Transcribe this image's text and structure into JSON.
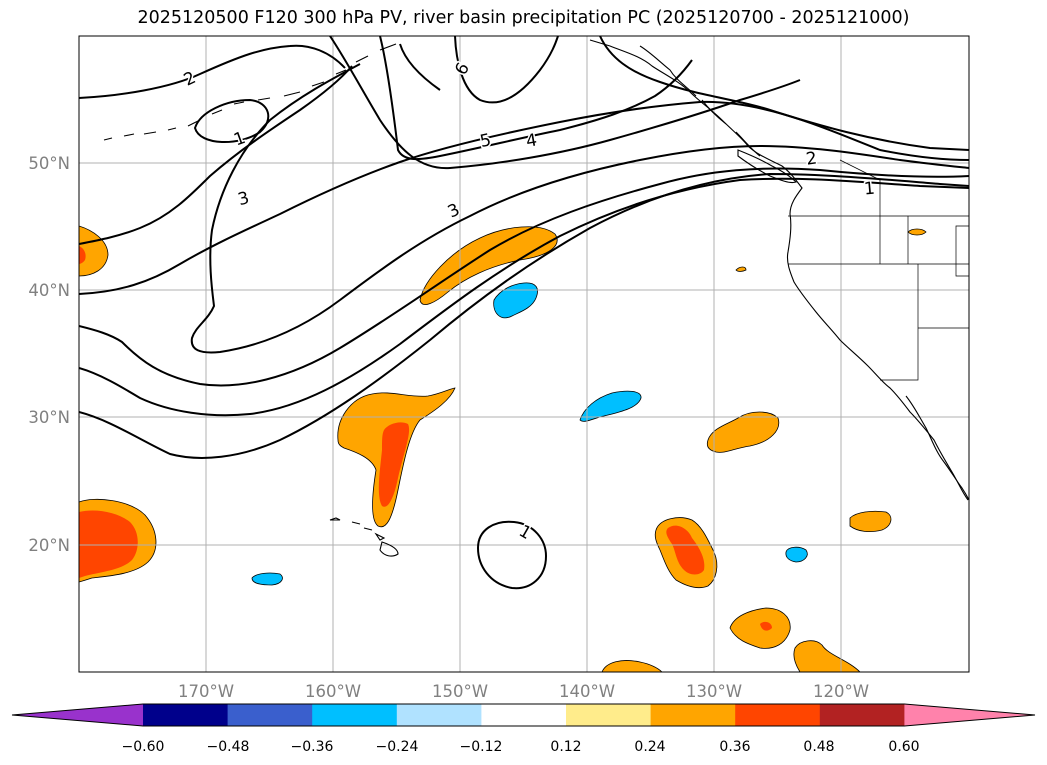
{
  "title": "2025120500 F120 300 hPa PV, river basin precipitation PC (2025120700 - 2025121000)",
  "map": {
    "lon_ticks": [
      "170°W",
      "160°W",
      "150°W",
      "140°W",
      "130°W",
      "120°W"
    ],
    "lat_ticks": [
      "50°N",
      "40°N",
      "30°N",
      "20°N"
    ],
    "contour_labels": [
      "2",
      "1",
      "3",
      "6",
      "5",
      "4",
      "3",
      "2",
      "1",
      "1"
    ]
  },
  "colorbar": {
    "ticks": [
      "−0.60",
      "−0.48",
      "−0.36",
      "−0.24",
      "−0.12",
      "0.12",
      "0.24",
      "0.36",
      "0.48",
      "0.60"
    ],
    "colors": [
      "#9932cc",
      "#00008b",
      "#3a5fcd",
      "#00bfff",
      "#b0e2ff",
      "#ffffff",
      "#ffec8b",
      "#ffa500",
      "#ff4500",
      "#b22222",
      "#ff82ab"
    ]
  },
  "colors": {
    "orange": "#ffa500",
    "red_orange": "#ff4500",
    "deep_sky_blue": "#00bfff",
    "grid": "#b0b0b0",
    "tick_text": "#808080"
  }
}
